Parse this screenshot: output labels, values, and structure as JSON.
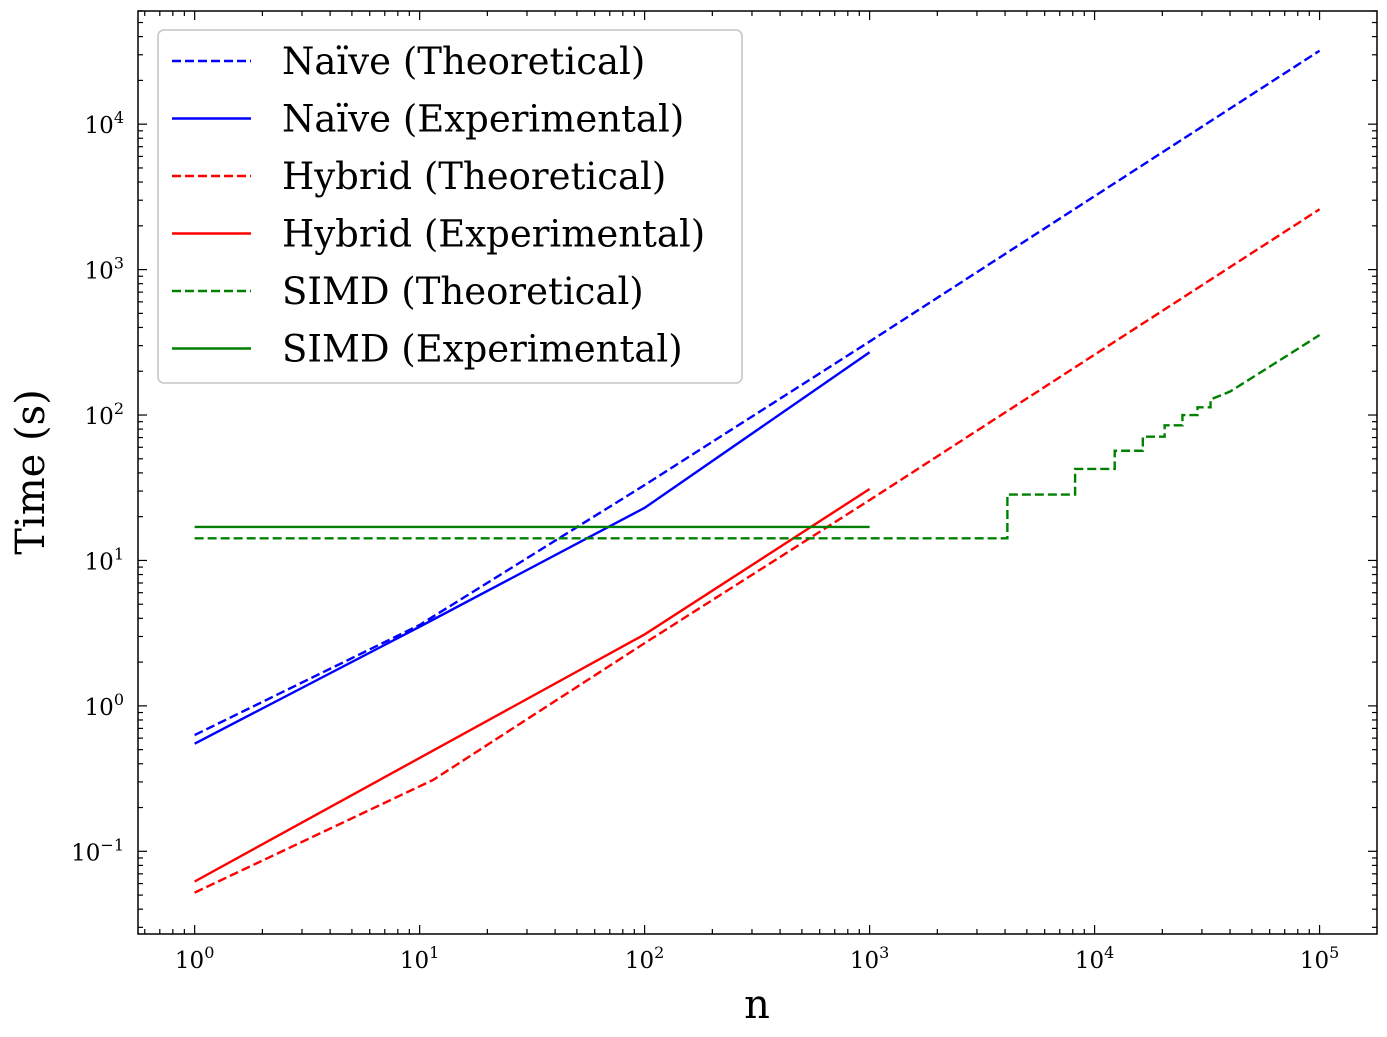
{
  "chart_data": {
    "type": "line",
    "title": "",
    "xlabel": "n",
    "ylabel": "Time (s)",
    "xscale": "log",
    "yscale": "log",
    "xlim": [
      0.56,
      180000
    ],
    "ylim": [
      0.027,
      60000
    ],
    "grid": false,
    "legend_position": "upper-left",
    "x_ticks": [
      {
        "value": 1,
        "base": "10",
        "exp": "0"
      },
      {
        "value": 10,
        "base": "10",
        "exp": "1"
      },
      {
        "value": 100,
        "base": "10",
        "exp": "2"
      },
      {
        "value": 1000,
        "base": "10",
        "exp": "3"
      },
      {
        "value": 10000,
        "base": "10",
        "exp": "4"
      },
      {
        "value": 100000,
        "base": "10",
        "exp": "5"
      }
    ],
    "y_ticks": [
      {
        "value": 0.1,
        "base": "10",
        "exp": "−1"
      },
      {
        "value": 1,
        "base": "10",
        "exp": "0"
      },
      {
        "value": 10,
        "base": "10",
        "exp": "1"
      },
      {
        "value": 100,
        "base": "10",
        "exp": "2"
      },
      {
        "value": 1000,
        "base": "10",
        "exp": "3"
      },
      {
        "value": 10000,
        "base": "10",
        "exp": "4"
      }
    ],
    "series": [
      {
        "name": "Naïve (Theoretical)",
        "color": "#0000ff",
        "style": "dashed",
        "x": [
          1,
          10,
          100,
          1000,
          10000,
          100000
        ],
        "y": [
          0.63,
          3.6,
          33,
          320,
          3200,
          32000
        ]
      },
      {
        "name": "Naïve (Experimental)",
        "color": "#0000ff",
        "style": "solid",
        "x": [
          1,
          10,
          100,
          1000
        ],
        "y": [
          0.55,
          3.5,
          23,
          270
        ]
      },
      {
        "name": "Hybrid (Theoretical)",
        "color": "#ff0000",
        "style": "dashed",
        "x": [
          1,
          11.5,
          100,
          1000,
          10000,
          100000
        ],
        "y": [
          0.052,
          0.31,
          2.7,
          26,
          260,
          2600
        ]
      },
      {
        "name": "Hybrid (Experimental)",
        "color": "#ff0000",
        "style": "solid",
        "x": [
          1,
          100,
          1000
        ],
        "y": [
          0.062,
          3.1,
          31
        ]
      },
      {
        "name": "SIMD (Theoretical)",
        "color": "#008000",
        "style": "dashed",
        "step": true,
        "x": [
          1,
          4096,
          4096,
          8192,
          8192,
          12288,
          12288,
          16384,
          16384,
          20480,
          20480,
          24576,
          24576,
          28672,
          28672,
          32768,
          32768,
          40000,
          50000,
          60000,
          70000,
          80000,
          90000,
          100000
        ],
        "y": [
          14.2,
          14.2,
          28.4,
          28.4,
          42.6,
          42.6,
          56.8,
          56.8,
          71,
          71,
          85,
          85,
          100,
          100,
          113,
          113,
          128,
          145,
          180,
          215,
          250,
          285,
          320,
          355
        ]
      },
      {
        "name": "SIMD (Experimental)",
        "color": "#008000",
        "style": "solid",
        "x": [
          1,
          1000
        ],
        "y": [
          17,
          17
        ]
      }
    ]
  }
}
